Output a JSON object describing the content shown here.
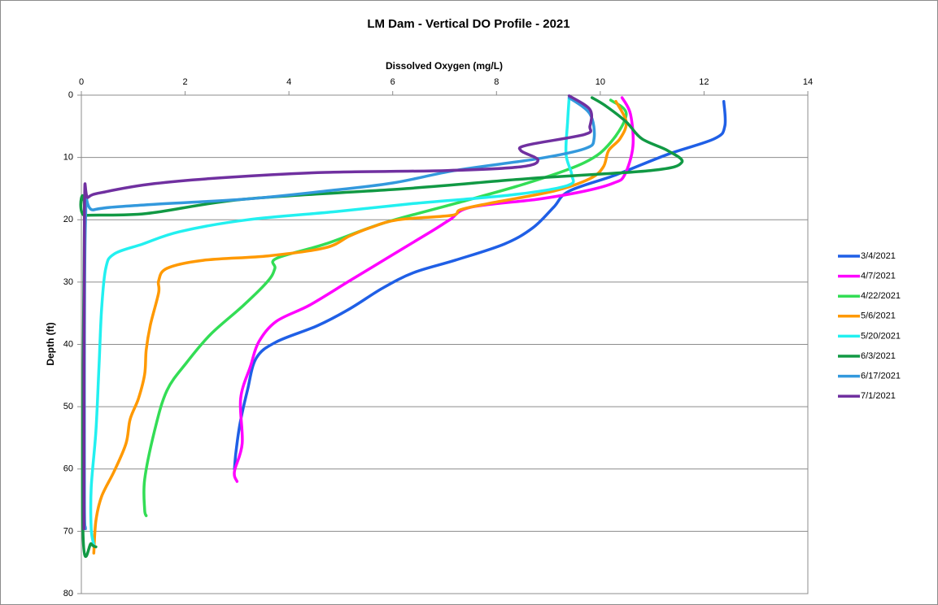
{
  "chart_data": {
    "type": "line",
    "title": "LM Dam - Vertical DO Profile - 2021",
    "x_label": "Dissolved Oxygen (mg/L)",
    "y_label": "Depth (ft)",
    "xlim": [
      0,
      14
    ],
    "xticks": [
      0,
      2,
      4,
      6,
      8,
      10,
      12,
      14
    ],
    "ylim": [
      0,
      80
    ],
    "yticks": [
      0,
      10,
      20,
      30,
      40,
      50,
      60,
      70,
      80
    ],
    "y_inverted": true,
    "x_axis_position": "top",
    "grid": true,
    "legend": "right",
    "series": [
      {
        "name": "3/4/2021",
        "color": "#1f5fe6",
        "x": [
          12.38,
          12.4,
          12.2,
          11.3,
          10.3,
          9.4,
          9.1,
          8.7,
          8.15,
          7.2,
          6.4,
          5.8,
          5.17,
          4.55,
          3.76,
          3.37,
          3.2,
          3.06,
          2.98,
          2.95
        ],
        "y": [
          1,
          5,
          7,
          9.5,
          12.8,
          15.4,
          18,
          21.3,
          23.9,
          26.5,
          28.5,
          31,
          34.3,
          37,
          39.6,
          42.2,
          47.4,
          52.6,
          57.2,
          60
        ]
      },
      {
        "name": "4/7/2021",
        "color": "#ff00ff",
        "x": [
          10.42,
          10.58,
          10.63,
          10.47,
          10.26,
          9.7,
          8.8,
          7.5,
          7.1,
          6.74,
          5.96,
          5.17,
          4.4,
          3.76,
          3.42,
          3.26,
          3.07,
          3.1,
          2.95,
          3.0
        ],
        "y": [
          0.4,
          3,
          8.2,
          12.8,
          14.1,
          15.4,
          16.7,
          18,
          20,
          21.9,
          25.8,
          29.8,
          33.7,
          36.3,
          39.6,
          43.5,
          48.7,
          55.9,
          60.4,
          62
        ]
      },
      {
        "name": "4/22/2021",
        "color": "#33dd55",
        "x": [
          10.2,
          10.5,
          10.2,
          9.7,
          8.6,
          7.2,
          5.8,
          4.7,
          3.76,
          3.73,
          3.6,
          3.13,
          2.5,
          2.04,
          1.65,
          1.41,
          1.22,
          1.22,
          1.25
        ],
        "y": [
          0.8,
          3,
          7.6,
          10.8,
          14.1,
          17.4,
          20.6,
          23.9,
          26.2,
          27.8,
          29.8,
          33.7,
          38.3,
          42.8,
          47.4,
          53.9,
          61.7,
          66.5,
          67.5
        ]
      },
      {
        "name": "5/6/2021",
        "color": "#ff9900",
        "x": [
          10.3,
          10.5,
          10.38,
          10.16,
          10.06,
          9.8,
          9.1,
          7.84,
          7.3,
          7.13,
          6.1,
          5.56,
          5.17,
          4.7,
          3.6,
          2.35,
          1.65,
          1.49,
          1.49,
          1.33,
          1.25,
          1.22,
          1.1,
          0.94,
          0.86,
          0.63,
          0.39,
          0.28,
          0.24
        ],
        "y": [
          1,
          4.3,
          7,
          8.9,
          11.5,
          13.4,
          15.4,
          17.4,
          18.4,
          19.3,
          20,
          21.3,
          22.6,
          24.5,
          25.8,
          26.5,
          27.8,
          29.8,
          31.7,
          36.9,
          40.9,
          44.8,
          48.7,
          52,
          55.9,
          60.4,
          64.4,
          68.3,
          73.5
        ]
      },
      {
        "name": "5/20/2021",
        "color": "#22f0f0",
        "x": [
          9.4,
          9.37,
          9.34,
          9.45,
          9.37,
          8.3,
          6.4,
          4.9,
          3.2,
          1.9,
          1.18,
          0.63,
          0.47,
          0.39,
          0.34,
          0.28,
          0.19,
          0.19,
          0.24
        ],
        "y": [
          0.4,
          4.3,
          9.5,
          12.8,
          14.5,
          16,
          17.4,
          18.7,
          20,
          21.9,
          23.9,
          25.5,
          27.8,
          34.3,
          43.5,
          53.9,
          63,
          69.6,
          72.2
        ]
      },
      {
        "name": "6/3/2021",
        "color": "#119944",
        "x": [
          9.84,
          10.1,
          10.5,
          10.8,
          11.3,
          11.57,
          10.97,
          8.6,
          6.27,
          3.13,
          1.25,
          0.08,
          0.06,
          0.03,
          0.19,
          0.28
        ],
        "y": [
          0.4,
          1.7,
          4.3,
          7,
          8.9,
          10.8,
          12.1,
          13.4,
          15,
          16.7,
          19,
          19.3,
          20,
          69.6,
          72,
          72.5
        ]
      },
      {
        "name": "6/17/2021",
        "color": "#3399dd",
        "x": [
          9.4,
          9.8,
          9.88,
          9.7,
          8.8,
          7.2,
          6.0,
          4.7,
          3.13,
          1.25,
          0.24,
          0.08,
          0.06,
          0.08
        ],
        "y": [
          0.4,
          3,
          7,
          8.6,
          10.2,
          12.1,
          14.1,
          15.4,
          16.7,
          17.6,
          18.4,
          20,
          63,
          69.6
        ]
      },
      {
        "name": "7/1/2021",
        "color": "#7030a0",
        "x": [
          9.4,
          9.8,
          9.8,
          9.7,
          8.6,
          8.47,
          8.8,
          8.47,
          7.05,
          4.7,
          2.82,
          1.41,
          0.47,
          0.13,
          0.06,
          0.05
        ],
        "y": [
          0.1,
          2.3,
          5,
          6.3,
          8,
          8.9,
          10.4,
          11.5,
          12.1,
          12.4,
          13.2,
          14.2,
          15.5,
          16.4,
          18.7,
          69.6
        ]
      }
    ]
  }
}
